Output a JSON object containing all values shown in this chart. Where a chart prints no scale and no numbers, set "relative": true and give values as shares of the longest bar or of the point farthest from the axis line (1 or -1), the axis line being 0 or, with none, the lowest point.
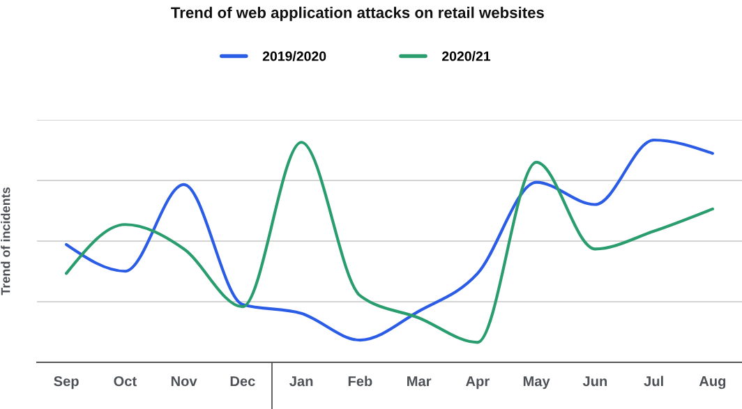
{
  "chart_data": {
    "type": "line",
    "title": "Trend of web application attacks on retail websites",
    "ylabel": "Trend of incidents",
    "categories": [
      "Sep",
      "Oct",
      "Nov",
      "Dec",
      "Jan",
      "Feb",
      "Mar",
      "Apr",
      "May",
      "Jun",
      "Jul",
      "Aug"
    ],
    "relative": true,
    "grid": "y",
    "legend": "top",
    "series": [
      {
        "name": "2019/2020",
        "color": "#2b5ce6",
        "values": [
          0.53,
          0.41,
          0.8,
          0.26,
          0.22,
          0.1,
          0.23,
          0.4,
          0.81,
          0.71,
          1.0,
          0.94
        ]
      },
      {
        "name": "2020/21",
        "color": "#2a9d6e",
        "values": [
          0.4,
          0.62,
          0.51,
          0.25,
          0.99,
          0.3,
          0.2,
          0.09,
          0.9,
          0.51,
          0.59,
          0.69
        ]
      }
    ]
  }
}
